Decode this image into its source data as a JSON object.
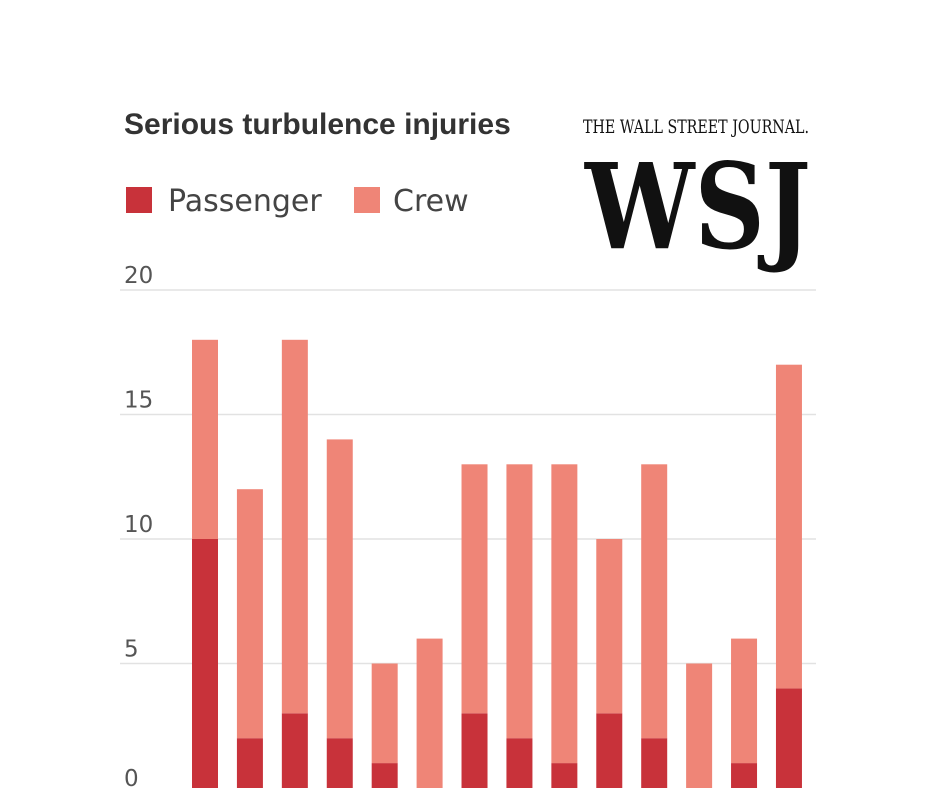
{
  "colors": {
    "passenger": "#c8323a",
    "crew": "#ef8577",
    "grid": "#e2e2e2",
    "text": "#333333"
  },
  "logo": {
    "masthead": "THE WALL STREET JOURNAL.",
    "monogram": "WSJ"
  },
  "chart_data": {
    "type": "bar",
    "stacked": true,
    "title": "Serious turbulence injuries",
    "xlabel": "",
    "ylabel": "",
    "ylim": [
      0,
      20
    ],
    "yticks": [
      0,
      5,
      10,
      15,
      20
    ],
    "grid": true,
    "legend_position": "top-left",
    "series": [
      {
        "name": "Passenger",
        "color": "#c8323a",
        "values": [
          10,
          2,
          3,
          2,
          1,
          0,
          3,
          2,
          1,
          3,
          2,
          0,
          1,
          4
        ]
      },
      {
        "name": "Crew",
        "color": "#ef8577",
        "values": [
          8,
          10,
          15,
          12,
          4,
          6,
          10,
          11,
          12,
          7,
          11,
          5,
          5,
          13
        ]
      }
    ]
  }
}
